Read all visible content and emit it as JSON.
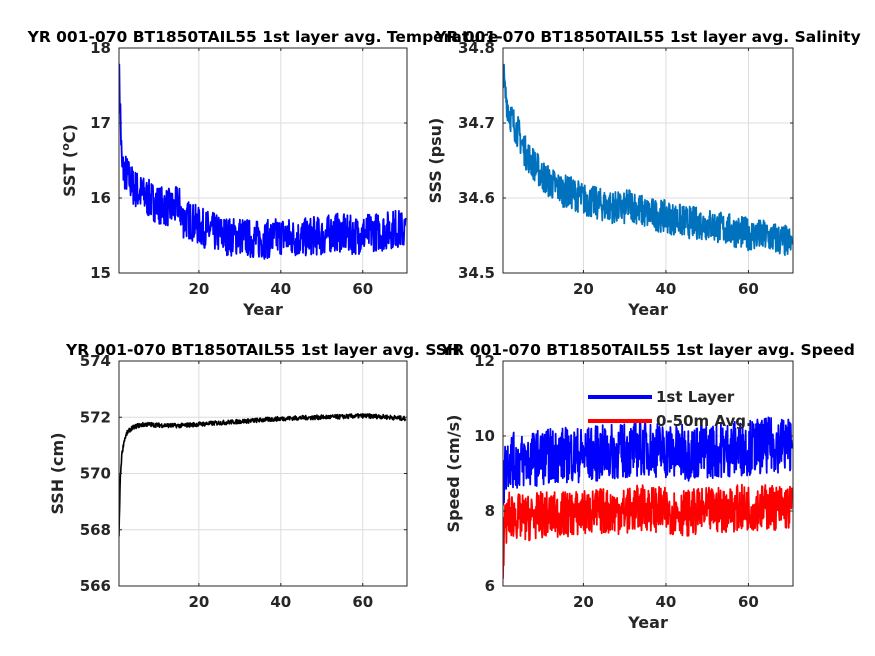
{
  "chart_data": [
    {
      "type": "line",
      "title": "YR 001-070 BT1850TAIL55 1st layer avg. Temperature",
      "xlabel": "Year",
      "ylabel": "SST (°C)",
      "ylabel_parts": [
        "SST (",
        "o",
        "C)"
      ],
      "xlim": [
        0.5,
        70.8
      ],
      "ylim": [
        15,
        18
      ],
      "xticks": [
        20,
        40,
        60
      ],
      "xtick_labels": [
        "20",
        "40",
        "60"
      ],
      "yticks": [
        15,
        16,
        17,
        18
      ],
      "ytick_labels": [
        "15",
        "16",
        "17",
        "18"
      ],
      "grid": true,
      "series": [
        {
          "color": "#0000ff",
          "noise": 0.26,
          "x": [
            0.5,
            0.8,
            1.2,
            2,
            4,
            6,
            8,
            10,
            12,
            14,
            15,
            16,
            18,
            20,
            22,
            25,
            28,
            30,
            33,
            35,
            38,
            40,
            43,
            45,
            48,
            50,
            53,
            55,
            58,
            60,
            63,
            65,
            68,
            70.5
          ],
          "y": [
            17.7,
            17.2,
            16.4,
            16.35,
            16.15,
            16.05,
            15.98,
            15.92,
            15.88,
            15.85,
            15.95,
            15.72,
            15.7,
            15.62,
            15.58,
            15.52,
            15.48,
            15.5,
            15.45,
            15.44,
            15.46,
            15.5,
            15.47,
            15.46,
            15.5,
            15.48,
            15.55,
            15.53,
            15.5,
            15.52,
            15.55,
            15.55,
            15.6,
            15.55
          ]
        }
      ]
    },
    {
      "type": "line",
      "title": "YR 001-070 BT1850TAIL55 1st layer avg. Salinity",
      "xlabel": "Year",
      "ylabel": "SSS (psu)",
      "xlim": [
        0.5,
        70.8
      ],
      "ylim": [
        34.5,
        34.8
      ],
      "xticks": [
        20,
        40,
        60
      ],
      "xtick_labels": [
        "20",
        "40",
        "60"
      ],
      "yticks": [
        34.5,
        34.6,
        34.7,
        34.8
      ],
      "ytick_labels": [
        "34.5",
        "34.6",
        "34.7",
        "34.8"
      ],
      "grid": true,
      "series": [
        {
          "color": "#0072bd",
          "noise": 0.022,
          "x": [
            0.5,
            1,
            2,
            3,
            4,
            5,
            6,
            8,
            10,
            12,
            15,
            18,
            20,
            25,
            30,
            31,
            35,
            40,
            45,
            50,
            55,
            60,
            65,
            70.5
          ],
          "y": [
            34.775,
            34.74,
            34.715,
            34.7,
            34.69,
            34.675,
            34.66,
            34.645,
            34.63,
            34.62,
            34.61,
            34.605,
            34.598,
            34.59,
            34.585,
            34.593,
            34.58,
            34.575,
            34.568,
            34.565,
            34.558,
            34.552,
            34.548,
            34.54
          ]
        }
      ]
    },
    {
      "type": "line",
      "title": "YR 001-070 BT1850TAIL55 1st layer avg. SSH",
      "xlabel": "",
      "ylabel": "SSH (cm)",
      "xlim": [
        0.5,
        70.8
      ],
      "ylim": [
        566,
        574
      ],
      "xticks": [
        20,
        40,
        60
      ],
      "xtick_labels": [
        "20",
        "40",
        "60"
      ],
      "yticks": [
        566,
        568,
        570,
        572,
        574
      ],
      "ytick_labels": [
        "566",
        "568",
        "570",
        "572",
        "574"
      ],
      "grid": true,
      "series": [
        {
          "color": "#000000",
          "noise": 0.08,
          "x": [
            0.5,
            0.6,
            0.8,
            1.2,
            1.8,
            2.5,
            3.5,
            5,
            7,
            10,
            15,
            20,
            25,
            30,
            35,
            40,
            45,
            50,
            55,
            60,
            65,
            70.5
          ],
          "y": [
            567.7,
            568.5,
            569.8,
            570.7,
            571.2,
            571.45,
            571.6,
            571.7,
            571.75,
            571.72,
            571.7,
            571.75,
            571.8,
            571.85,
            571.9,
            571.95,
            571.98,
            572.0,
            572.02,
            572.05,
            572.02,
            571.95
          ]
        }
      ]
    },
    {
      "type": "line",
      "title": "YR 001-070 BT1850TAIL55 1st layer avg. Speed",
      "xlabel": "Year",
      "ylabel": "Speed (cm/s)",
      "xlim": [
        0.5,
        70.8
      ],
      "ylim": [
        6,
        12
      ],
      "xticks": [
        20,
        40,
        60
      ],
      "xtick_labels": [
        "20",
        "40",
        "60"
      ],
      "yticks": [
        6,
        8,
        10,
        12
      ],
      "ytick_labels": [
        "6",
        "8",
        "10",
        "12"
      ],
      "grid": true,
      "legend_position": "top",
      "series": [
        {
          "name": "1st Layer",
          "color": "#0000ff",
          "noise": 0.75,
          "x": [
            0.5,
            1,
            2,
            4,
            6,
            8,
            10,
            15,
            20,
            25,
            30,
            35,
            40,
            45,
            50,
            55,
            60,
            65,
            70.5
          ],
          "y": [
            8.5,
            9.2,
            9.4,
            9.3,
            9.35,
            9.4,
            9.45,
            9.5,
            9.5,
            9.55,
            9.6,
            9.7,
            9.6,
            9.55,
            9.6,
            9.65,
            9.7,
            9.75,
            9.8
          ]
        },
        {
          "name": "0-50m Avg.",
          "color": "#ff0000",
          "noise": 0.62,
          "x": [
            0.5,
            1,
            2,
            4,
            6,
            8,
            10,
            15,
            20,
            25,
            30,
            35,
            40,
            45,
            50,
            55,
            60,
            65,
            70.5
          ],
          "y": [
            6.8,
            7.6,
            7.9,
            7.85,
            7.8,
            7.85,
            7.9,
            7.9,
            7.95,
            8.0,
            8.0,
            8.1,
            8.0,
            7.95,
            8.0,
            8.05,
            8.1,
            8.1,
            8.1
          ]
        }
      ]
    }
  ]
}
